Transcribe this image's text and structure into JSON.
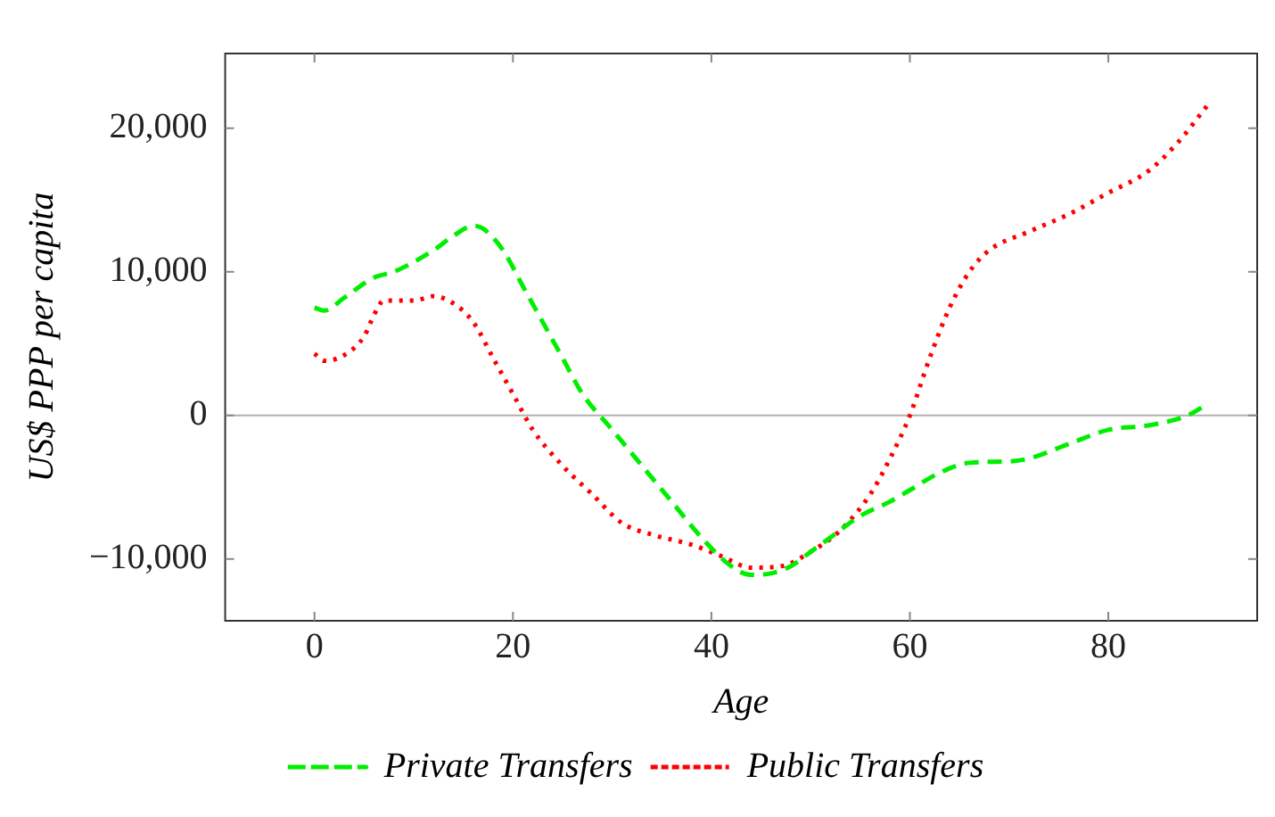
{
  "chart_data": {
    "type": "line",
    "xlabel": "Age",
    "ylabel": "US$ PPP per capita",
    "xlim": [
      -9,
      95
    ],
    "xticks": [
      0,
      20,
      40,
      60,
      80
    ],
    "ylim": [
      -14300,
      25200
    ],
    "yticks": [
      {
        "value": -10000,
        "label": "−10,000"
      },
      {
        "value": 0,
        "label": "0"
      },
      {
        "value": 10000,
        "label": "10,000"
      },
      {
        "value": 20000,
        "label": "20,000"
      }
    ],
    "grid": false,
    "legend": "bottom",
    "ref_lines": [
      {
        "axis": "y",
        "value": 0,
        "color": "#b0b0b0"
      }
    ],
    "series": [
      {
        "name": "Private Transfers",
        "color": "#00ee00",
        "line_style": "dashed",
        "x": [
          0,
          1,
          3,
          6,
          8,
          12,
          14,
          16,
          17,
          19,
          21,
          23,
          25,
          27,
          30,
          33,
          36,
          39,
          42,
          44,
          46,
          48,
          50,
          52,
          55,
          58,
          60,
          63,
          66,
          70,
          72,
          76,
          80,
          84,
          88,
          90
        ],
        "values": [
          7500,
          7300,
          8200,
          9600,
          10000,
          11500,
          12500,
          13200,
          13000,
          11500,
          9000,
          6500,
          4000,
          1500,
          -1000,
          -3500,
          -6000,
          -8500,
          -10500,
          -11100,
          -11000,
          -10500,
          -9500,
          -8500,
          -7000,
          -6000,
          -5200,
          -4000,
          -3300,
          -3200,
          -3000,
          -2000,
          -1000,
          -700,
          0,
          800
        ]
      },
      {
        "name": "Public Transfers",
        "color": "#ff0000",
        "line_style": "dotted",
        "x": [
          0,
          1,
          3,
          5,
          6,
          7,
          10,
          12,
          14,
          16,
          18,
          20,
          22,
          25,
          28,
          31,
          34,
          38,
          41,
          44,
          47,
          50,
          53,
          56,
          58,
          60,
          62,
          64,
          66,
          68,
          72,
          76,
          80,
          84,
          87,
          90
        ],
        "values": [
          4300,
          3800,
          4200,
          5500,
          7000,
          8000,
          8000,
          8300,
          7800,
          6500,
          4000,
          1500,
          -1000,
          -3500,
          -5500,
          -7500,
          -8300,
          -9000,
          -9800,
          -10600,
          -10500,
          -9500,
          -8000,
          -5500,
          -3000,
          0,
          4000,
          7500,
          10000,
          11500,
          12800,
          14000,
          15500,
          17000,
          19000,
          21600
        ]
      }
    ]
  }
}
